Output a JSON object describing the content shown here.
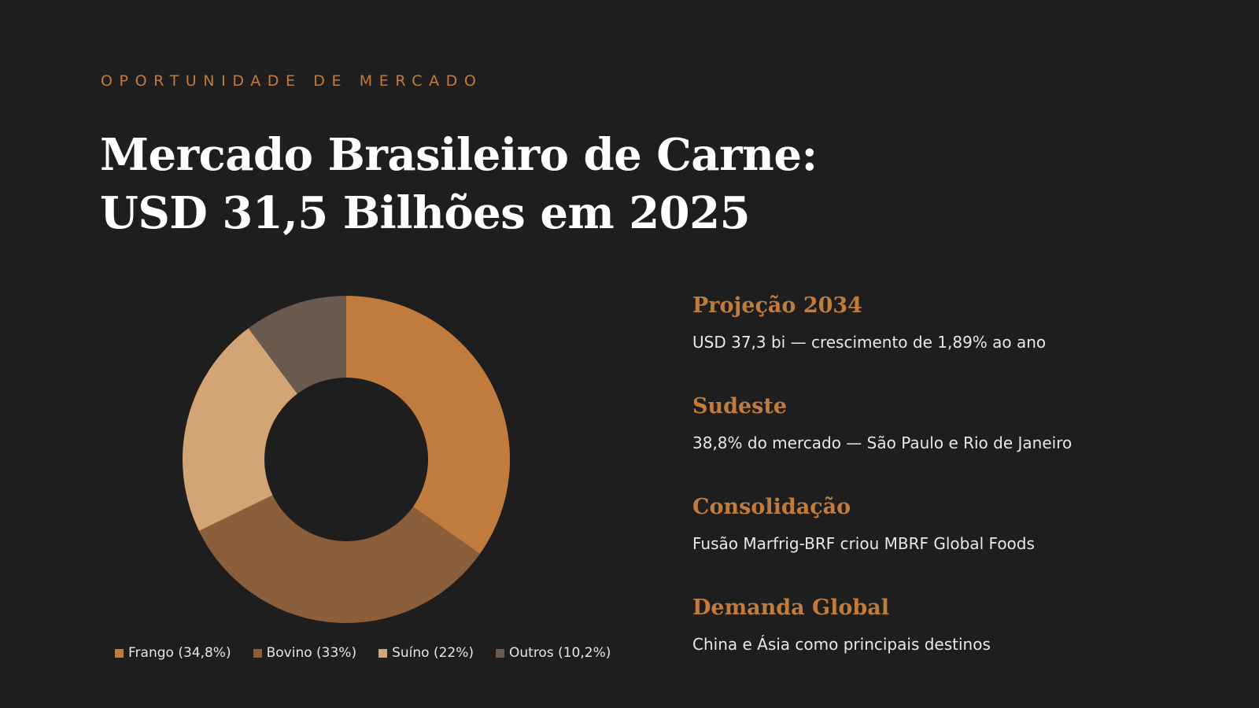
{
  "slide": {
    "eyebrow": "OPORTUNIDADE DE MERCADO",
    "title_line1": "Mercado Brasileiro de Carne:",
    "title_line2": "USD 31,5 Bilhões em 2025",
    "background_color": "#1e1e1e",
    "accent_color": "#c17b3c"
  },
  "chart_data": {
    "type": "pie",
    "variant": "donut",
    "title": "",
    "categories": [
      "Frango",
      "Bovino",
      "Suíno",
      "Outros"
    ],
    "values": [
      34.8,
      33,
      22,
      10.2
    ],
    "unit": "%",
    "colors": [
      "#c17b3c",
      "#8b5e3c",
      "#d4a574",
      "#6b5b4e"
    ],
    "legend_labels": [
      "Frango (34,8%)",
      "Bovino (33%)",
      "Suíno (22%)",
      "Outros (10,2%)"
    ],
    "legend_position": "bottom",
    "start_angle": "top",
    "direction": "clockwise"
  },
  "insights": [
    {
      "heading": "Projeção 2034",
      "text": "USD 37,3 bi — crescimento de 1,89% ao ano"
    },
    {
      "heading": "Sudeste",
      "text": "38,8% do mercado — São Paulo e Rio de Janeiro"
    },
    {
      "heading": "Consolidação",
      "text": "Fusão Marfrig-BRF criou MBRF Global Foods"
    },
    {
      "heading": "Demanda Global",
      "text": "China e Ásia como principais destinos"
    }
  ]
}
